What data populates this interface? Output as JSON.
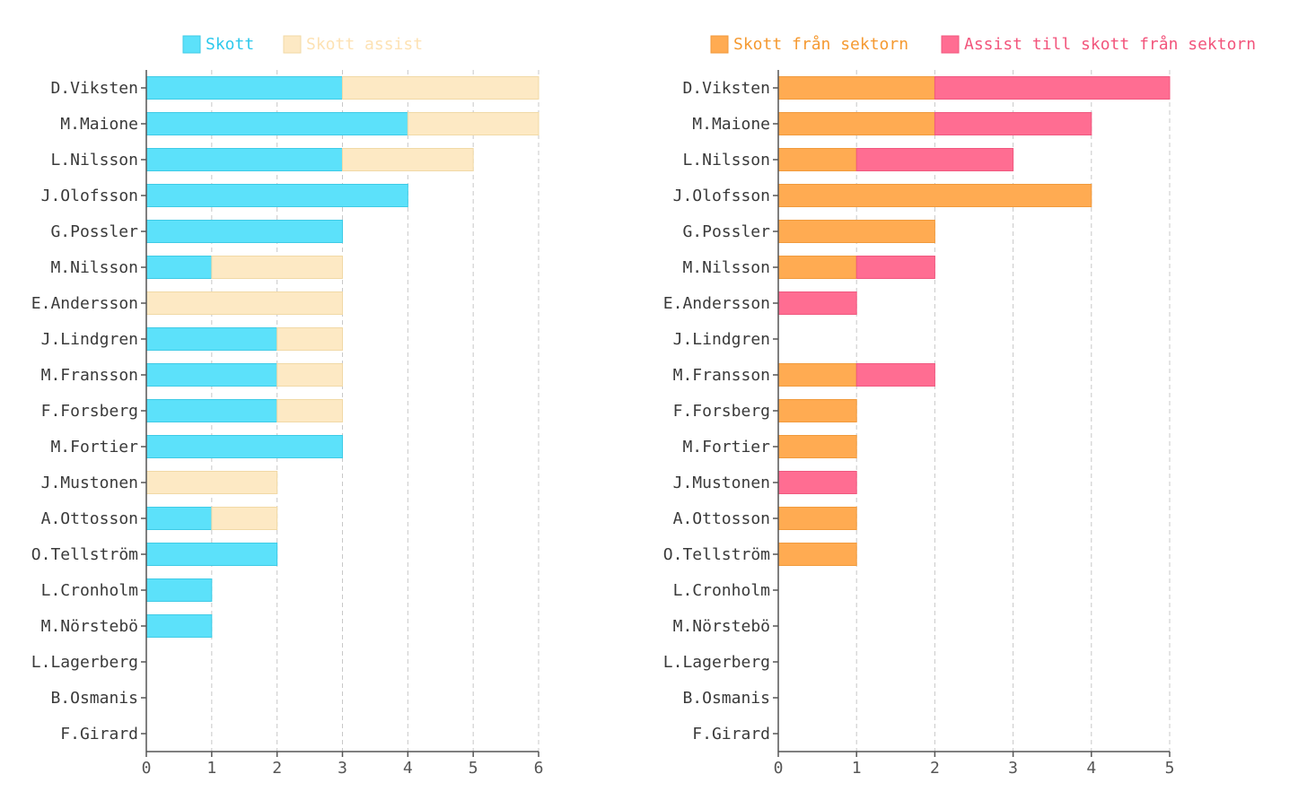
{
  "chart_data": [
    {
      "type": "bar",
      "orientation": "horizontal",
      "stacked": true,
      "categories": [
        "D.Viksten",
        "M.Maione",
        "L.Nilsson",
        "J.Olofsson",
        "G.Possler",
        "M.Nilsson",
        "E.Andersson",
        "J.Lindgren",
        "M.Fransson",
        "F.Forsberg",
        "M.Fortier",
        "J.Mustonen",
        "A.Ottosson",
        "O.Tellström",
        "L.Cronholm",
        "M.Nörstebö",
        "L.Lagerberg",
        "B.Osmanis",
        "F.Girard"
      ],
      "series": [
        {
          "name": "Skott",
          "color": "#5ce1fa",
          "stroke": "#3fcbe6",
          "label_color": "#2ec9ec",
          "values": [
            3,
            4,
            3,
            4,
            3,
            1,
            0,
            2,
            2,
            2,
            3,
            0,
            1,
            2,
            1,
            1,
            0,
            0,
            0
          ]
        },
        {
          "name": "Skott assist",
          "color": "#fde9c4",
          "stroke": "#f1d9a6",
          "label_color": "#fde2b4",
          "values": [
            3,
            2,
            2,
            0,
            0,
            2,
            3,
            1,
            1,
            1,
            0,
            2,
            1,
            0,
            0,
            0,
            0,
            0,
            0
          ]
        }
      ],
      "xlim": [
        0,
        6
      ],
      "xticks": [
        "0",
        "1",
        "2",
        "3",
        "4",
        "5",
        "6"
      ],
      "grid": "vertical dashed",
      "legend": "top"
    },
    {
      "type": "bar",
      "orientation": "horizontal",
      "stacked": true,
      "categories": [
        "D.Viksten",
        "M.Maione",
        "L.Nilsson",
        "J.Olofsson",
        "G.Possler",
        "M.Nilsson",
        "E.Andersson",
        "J.Lindgren",
        "M.Fransson",
        "F.Forsberg",
        "M.Fortier",
        "J.Mustonen",
        "A.Ottosson",
        "O.Tellström",
        "L.Cronholm",
        "M.Nörstebö",
        "L.Lagerberg",
        "B.Osmanis",
        "F.Girard"
      ],
      "series": [
        {
          "name": "Skott från sektorn",
          "color": "#ffab52",
          "stroke": "#f19a3c",
          "label_color": "#f59a32",
          "values": [
            2,
            2,
            1,
            4,
            2,
            1,
            0,
            0,
            1,
            1,
            1,
            0,
            1,
            1,
            0,
            0,
            0,
            0,
            0
          ]
        },
        {
          "name": "Assist till skott från sektorn",
          "color": "#ff6d92",
          "stroke": "#f0587f",
          "label_color": "#f2557c",
          "values": [
            3,
            2,
            2,
            0,
            0,
            1,
            1,
            0,
            1,
            0,
            0,
            1,
            0,
            0,
            0,
            0,
            0,
            0,
            0
          ]
        }
      ],
      "xlim": [
        0,
        5
      ],
      "xticks": [
        "0",
        "1",
        "2",
        "3",
        "4",
        "5"
      ],
      "grid": "vertical dashed",
      "legend": "top"
    }
  ]
}
